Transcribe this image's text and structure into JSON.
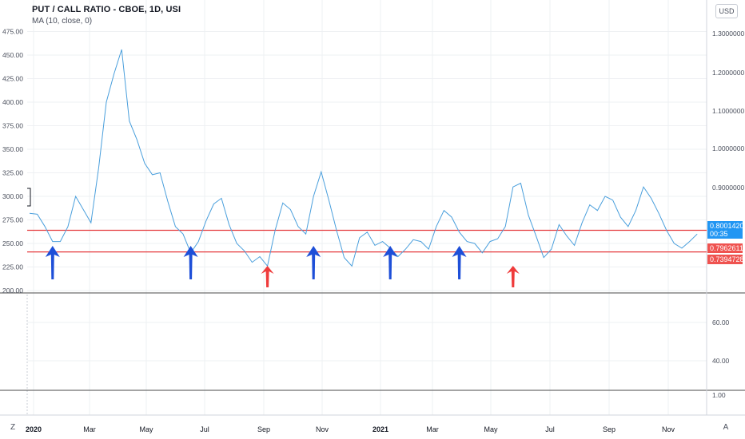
{
  "header": {
    "title": "PUT / CALL RATIO - CBOE, 1D, USI",
    "subtitle": "MA (10, close, 0)",
    "currency": "USD"
  },
  "corner": {
    "left": "Z",
    "right": "A"
  },
  "colors": {
    "line": "#4a9fdc",
    "support": "#e5383b",
    "blue_arrow": "#1e4fd8",
    "red_arrow": "#ef3b3b",
    "tag_blue": "#2196f3",
    "tag_red": "#ef5350"
  },
  "price_tags": [
    {
      "name": "last-price-tag",
      "value": "0.8001420",
      "sub": "00:35",
      "color": "#2196f3"
    },
    {
      "name": "upper-support-tag",
      "value": "0.7962611",
      "color": "#ef5350"
    },
    {
      "name": "lower-support-tag",
      "value": "0.7394728",
      "color": "#ef5350"
    }
  ],
  "chart_data": [
    {
      "type": "line",
      "title": "PUT / CALL RATIO - CBOE, 1D, USI",
      "subtitle": "MA (10, close, 0)",
      "x_tick_labels": [
        "2020",
        "Mar",
        "May",
        "Jul",
        "Sep",
        "Nov",
        "2021",
        "Mar",
        "May",
        "Jul",
        "Sep",
        "Nov"
      ],
      "left_axis_ticks": [
        "475.00",
        "450.00",
        "425.00",
        "400.00",
        "375.00",
        "350.00",
        "325.00",
        "300.00",
        "275.00",
        "250.00",
        "225.00",
        "200.00"
      ],
      "right_axis_ticks": [
        "1.3000000",
        "1.2000000",
        "1.1000000",
        "1.0000000",
        "0.9000000"
      ],
      "ylim": [
        200,
        478
      ],
      "series": [
        {
          "name": "MA (10, close, 0)",
          "points": [
            [
              0,
              282
            ],
            [
              6,
              281
            ],
            [
              12,
              268
            ],
            [
              18,
              252
            ],
            [
              24,
              252
            ],
            [
              30,
              268
            ],
            [
              36,
              300
            ],
            [
              42,
              286
            ],
            [
              48,
              272
            ],
            [
              54,
              330
            ],
            [
              60,
              400
            ],
            [
              66,
              430
            ],
            [
              72,
              456
            ],
            [
              78,
              380
            ],
            [
              84,
              360
            ],
            [
              90,
              335
            ],
            [
              96,
              323
            ],
            [
              102,
              325
            ],
            [
              108,
              295
            ],
            [
              114,
              268
            ],
            [
              120,
              260
            ],
            [
              126,
              240
            ],
            [
              132,
              252
            ],
            [
              138,
              274
            ],
            [
              144,
              292
            ],
            [
              150,
              298
            ],
            [
              156,
              270
            ],
            [
              162,
              250
            ],
            [
              168,
              242
            ],
            [
              174,
              230
            ],
            [
              180,
              236
            ],
            [
              186,
              226
            ],
            [
              192,
              264
            ],
            [
              198,
              293
            ],
            [
              204,
              286
            ],
            [
              210,
              268
            ],
            [
              216,
              260
            ],
            [
              222,
              300
            ],
            [
              228,
              326
            ],
            [
              234,
              296
            ],
            [
              240,
              264
            ],
            [
              246,
              235
            ],
            [
              252,
              226
            ],
            [
              258,
              256
            ],
            [
              264,
              262
            ],
            [
              270,
              248
            ],
            [
              276,
              252
            ],
            [
              282,
              245
            ],
            [
              288,
              236
            ],
            [
              294,
              244
            ],
            [
              300,
              254
            ],
            [
              306,
              252
            ],
            [
              312,
              244
            ],
            [
              318,
              268
            ],
            [
              324,
              285
            ],
            [
              330,
              278
            ],
            [
              336,
              262
            ],
            [
              342,
              252
            ],
            [
              348,
              250
            ],
            [
              354,
              240
            ],
            [
              360,
              252
            ],
            [
              366,
              255
            ],
            [
              372,
              268
            ],
            [
              378,
              310
            ],
            [
              384,
              314
            ],
            [
              390,
              280
            ],
            [
              396,
              258
            ],
            [
              402,
              235
            ],
            [
              408,
              244
            ],
            [
              414,
              270
            ],
            [
              420,
              258
            ],
            [
              426,
              248
            ],
            [
              432,
              272
            ],
            [
              438,
              291
            ],
            [
              444,
              285
            ],
            [
              450,
              300
            ],
            [
              456,
              296
            ],
            [
              462,
              278
            ],
            [
              468,
              268
            ],
            [
              474,
              285
            ],
            [
              480,
              310
            ],
            [
              486,
              298
            ],
            [
              492,
              282
            ],
            [
              498,
              264
            ],
            [
              504,
              250
            ],
            [
              510,
              245
            ],
            [
              516,
              252
            ],
            [
              522,
              260
            ]
          ]
        },
        {
          "name": "Upper support",
          "y": 264
        },
        {
          "name": "Lower support",
          "y": 241
        }
      ],
      "arrows": [
        {
          "color": "blue",
          "direction": "up",
          "x": 18
        },
        {
          "color": "blue",
          "direction": "up",
          "x": 126
        },
        {
          "color": "red",
          "direction": "up",
          "x": 186
        },
        {
          "color": "blue",
          "direction": "up",
          "x": 222
        },
        {
          "color": "blue",
          "direction": "up",
          "x": 282
        },
        {
          "color": "blue",
          "direction": "up",
          "x": 336
        },
        {
          "color": "red",
          "direction": "up",
          "x": 378
        }
      ]
    },
    {
      "type": "line",
      "title": "",
      "right_axis_ticks": [
        "60.00",
        "40.00"
      ],
      "series": []
    },
    {
      "type": "line",
      "title": "",
      "right_axis_ticks": [
        "1.00"
      ],
      "series": []
    }
  ]
}
